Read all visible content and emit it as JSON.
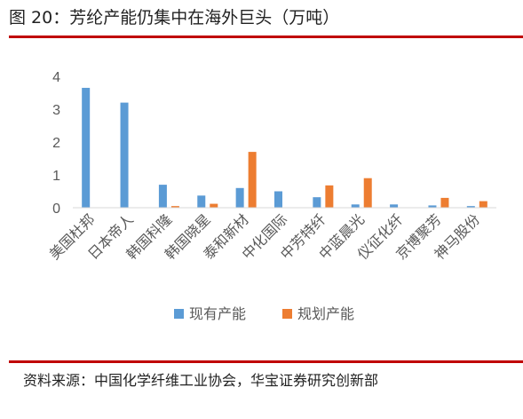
{
  "figure": {
    "title": "图 20：芳纶产能仍集中在海外巨头（万吨）",
    "source": "资料来源：中国化学纤维工业协会，华宝证券研究创新部"
  },
  "colors": {
    "rule": "#c00000",
    "series_existing": "#5b9bd5",
    "series_planned": "#ed7d31",
    "axis_text": "#595959",
    "axis_line": "#d9d9d9"
  },
  "chart_data": {
    "type": "bar",
    "title": "",
    "xlabel": "",
    "ylabel": "",
    "ylim": [
      0,
      4
    ],
    "yticks": [
      0,
      1,
      2,
      3,
      4
    ],
    "grid": false,
    "legend_position": "bottom",
    "categories": [
      "美国杜邦",
      "日本帝人",
      "韩国科隆",
      "韩国晓星",
      "泰和新材",
      "中化国际",
      "中芳特纤",
      "中蓝晨光",
      "仪征化纤",
      "京博聚芳",
      "神马股份"
    ],
    "series": [
      {
        "name": "现有产能",
        "color": "#5b9bd5",
        "values": [
          3.65,
          3.2,
          0.7,
          0.37,
          0.6,
          0.5,
          0.32,
          0.1,
          0.1,
          0.07,
          0.05
        ]
      },
      {
        "name": "规划产能",
        "color": "#ed7d31",
        "values": [
          0,
          0,
          0.05,
          0.12,
          1.7,
          0,
          0.68,
          0.9,
          0,
          0.3,
          0.2
        ]
      }
    ]
  }
}
